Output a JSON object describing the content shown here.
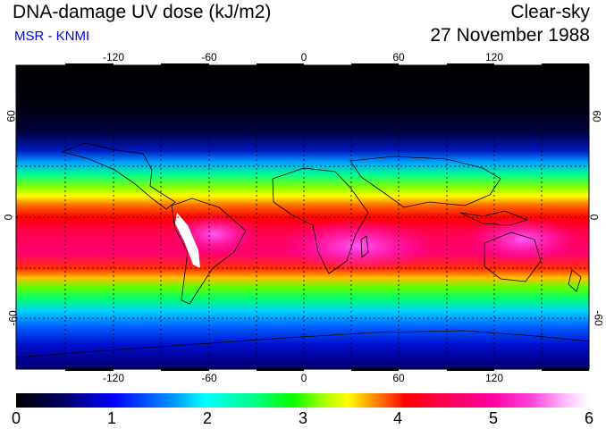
{
  "header": {
    "title": "DNA-damage UV dose (kJ/m2)",
    "source": "MSR - KNMI",
    "sky_condition": "Clear-sky",
    "date": "27 November 1988"
  },
  "map": {
    "lon_ticks": [
      "-120",
      "-60",
      "0",
      "60",
      "120"
    ],
    "lat_ticks_left": [
      "60",
      "0",
      "-60"
    ],
    "lat_ticks_right": [
      "60",
      "0",
      "-60"
    ],
    "grid_lon_step_deg": 30,
    "grid_lat_step_deg": 30,
    "lon_range": [
      -180,
      180
    ],
    "lat_range": [
      -90,
      90
    ]
  },
  "colorbar": {
    "min": 0,
    "max": 6,
    "labels": [
      "0",
      "1",
      "2",
      "3",
      "4",
      "5",
      "6"
    ]
  },
  "colors": {
    "title_text": "#000000",
    "source_text": "#0000ee"
  }
}
